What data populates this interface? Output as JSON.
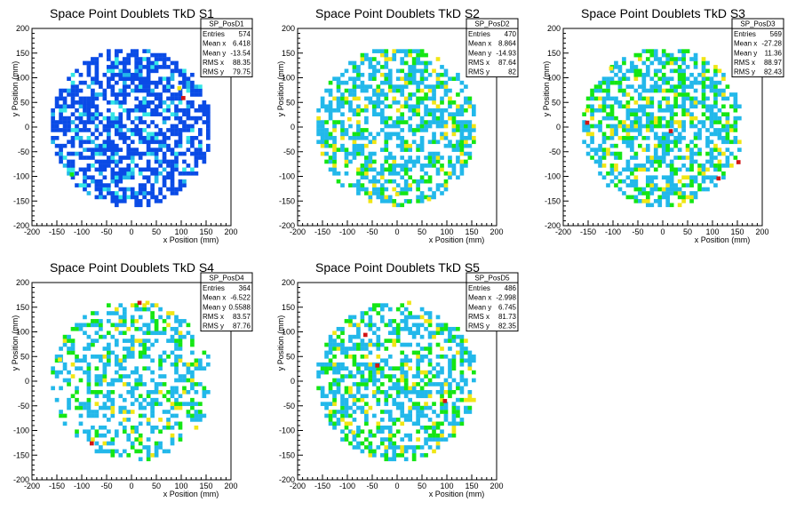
{
  "chart_data": [
    {
      "type": "heatmap",
      "title": "Space Point Doublets TkD S1",
      "xlabel": "x Position (mm)",
      "ylabel": "y Position (mm)",
      "xlim": [
        -200,
        200
      ],
      "ylim": [
        -200,
        200
      ],
      "xticks": [
        "-200",
        "-150",
        "-100",
        "-50",
        "0",
        "50",
        "100",
        "150",
        "200"
      ],
      "yticks": [
        "-200",
        "-150",
        "-100",
        "-50",
        "0",
        "50",
        "100",
        "150",
        "200"
      ],
      "stats": {
        "name": "SP_PosD1",
        "rows": [
          [
            "Entries",
            "574"
          ],
          [
            "Mean x",
            "6.418"
          ],
          [
            "Mean y",
            "-13.54"
          ],
          [
            "RMS x",
            "88.35"
          ],
          [
            "RMS y",
            "79.75"
          ]
        ]
      },
      "fill": 0.62,
      "palette": [
        "#0a4be6",
        "#0a4be6",
        "#0a4be6",
        "#0a4be6",
        "#0a4be6",
        "#0a4be6",
        "#0a4be6",
        "#0a4be6",
        "#22b8ea",
        "#33e6e6"
      ],
      "hot": [
        {
          "color": "#f0e614",
          "x": 92,
          "y": 75
        },
        {
          "color": "#d21414",
          "x": 100,
          "y": 55
        },
        {
          "color": "#14e614",
          "x": -124,
          "y": -100
        }
      ]
    },
    {
      "type": "heatmap",
      "title": "Space Point Doublets TkD S2",
      "xlabel": "x Position (mm)",
      "ylabel": "y Position (mm)",
      "xlim": [
        -200,
        200
      ],
      "ylim": [
        -200,
        200
      ],
      "xticks": [
        "-200",
        "-150",
        "-100",
        "-50",
        "0",
        "50",
        "100",
        "150",
        "200"
      ],
      "yticks": [
        "-200",
        "-150",
        "-100",
        "-50",
        "0",
        "50",
        "100",
        "150",
        "200"
      ],
      "stats": {
        "name": "SP_PosD2",
        "rows": [
          [
            "Entries",
            "470"
          ],
          [
            "Mean x",
            "8.864"
          ],
          [
            "Mean y",
            "-14.93"
          ],
          [
            "RMS x",
            "87.64"
          ],
          [
            "RMS y",
            "82"
          ]
        ]
      },
      "fill": 0.5,
      "palette": [
        "#22b8ea",
        "#22b8ea",
        "#22b8ea",
        "#22b8ea",
        "#22b8ea",
        "#22b8ea",
        "#22b8ea",
        "#14e614",
        "#14e614",
        "#f0e614"
      ],
      "hot": [
        {
          "color": "#f0e614",
          "x": -4,
          "y": -140
        },
        {
          "color": "#f0e614",
          "x": 60,
          "y": -150
        },
        {
          "color": "#14e614",
          "x": 20,
          "y": -155
        },
        {
          "color": "#14e614",
          "x": 124,
          "y": -40
        },
        {
          "color": "#f0e614",
          "x": -100,
          "y": 12
        }
      ]
    },
    {
      "type": "heatmap",
      "title": "Space Point Doublets TkD S3",
      "xlabel": "x Position (mm)",
      "ylabel": "y Position (mm)",
      "xlim": [
        -200,
        200
      ],
      "ylim": [
        -200,
        200
      ],
      "xticks": [
        "-200",
        "-150",
        "-100",
        "-50",
        "0",
        "50",
        "100",
        "150",
        "200"
      ],
      "yticks": [
        "-200",
        "-150",
        "-100",
        "-50",
        "0",
        "50",
        "100",
        "150",
        "200"
      ],
      "stats": {
        "name": "SP_PosD3",
        "rows": [
          [
            "Entries",
            "569"
          ],
          [
            "Mean x",
            "-27.28"
          ],
          [
            "Mean y",
            "11.36"
          ],
          [
            "RMS x",
            "88.97"
          ],
          [
            "RMS y",
            "82.43"
          ]
        ]
      },
      "fill": 0.55,
      "palette": [
        "#22b8ea",
        "#22b8ea",
        "#22b8ea",
        "#22b8ea",
        "#22b8ea",
        "#22b8ea",
        "#14e614",
        "#14e614",
        "#14e614",
        "#f0e614"
      ],
      "hot": [
        {
          "color": "#d21414",
          "x": -156,
          "y": 5
        },
        {
          "color": "#d21414",
          "x": 12,
          "y": -12
        },
        {
          "color": "#d21414",
          "x": 148,
          "y": -75
        },
        {
          "color": "#d21414",
          "x": 108,
          "y": -108
        },
        {
          "color": "#f0e614",
          "x": -156,
          "y": 30
        },
        {
          "color": "#f0e614",
          "x": -108,
          "y": 115
        }
      ]
    },
    {
      "type": "heatmap",
      "title": "Space Point Doublets TkD S4",
      "xlabel": "x Position (mm)",
      "ylabel": "y Position (mm)",
      "xlim": [
        -200,
        200
      ],
      "ylim": [
        -200,
        200
      ],
      "xticks": [
        "-200",
        "-150",
        "-100",
        "-50",
        "0",
        "50",
        "100",
        "150",
        "200"
      ],
      "yticks": [
        "-200",
        "-150",
        "-100",
        "-50",
        "0",
        "50",
        "100",
        "150",
        "200"
      ],
      "stats": {
        "name": "SP_PosD4",
        "rows": [
          [
            "Entries",
            "364"
          ],
          [
            "Mean x",
            "-6.522"
          ],
          [
            "Mean y",
            "0.5588"
          ],
          [
            "RMS x",
            "83.57"
          ],
          [
            "RMS y",
            "87.76"
          ]
        ]
      },
      "fill": 0.38,
      "palette": [
        "#22b8ea",
        "#22b8ea",
        "#22b8ea",
        "#22b8ea",
        "#22b8ea",
        "#22b8ea",
        "#22b8ea",
        "#14e614",
        "#14e614",
        "#f0e614"
      ],
      "hot": [
        {
          "color": "#d21414",
          "x": 12,
          "y": 155
        },
        {
          "color": "#d21414",
          "x": -84,
          "y": -130
        },
        {
          "color": "#f0e614",
          "x": -148,
          "y": 40
        },
        {
          "color": "#f0e614",
          "x": 28,
          "y": 155
        }
      ]
    },
    {
      "type": "heatmap",
      "title": "Space Point Doublets TkD S5",
      "xlabel": "x Position (mm)",
      "ylabel": "y Position (mm)",
      "xlim": [
        -200,
        200
      ],
      "ylim": [
        -200,
        200
      ],
      "xticks": [
        "-200",
        "-150",
        "-100",
        "-50",
        "0",
        "50",
        "100",
        "150",
        "200"
      ],
      "yticks": [
        "-200",
        "-150",
        "-100",
        "-50",
        "0",
        "50",
        "100",
        "150",
        "200"
      ],
      "stats": {
        "name": "SP_PosD5",
        "rows": [
          [
            "Entries",
            "486"
          ],
          [
            "Mean x",
            "-2.998"
          ],
          [
            "Mean y",
            "6.745"
          ],
          [
            "RMS x",
            "81.73"
          ],
          [
            "RMS y",
            "82.35"
          ]
        ]
      },
      "fill": 0.5,
      "palette": [
        "#22b8ea",
        "#22b8ea",
        "#22b8ea",
        "#22b8ea",
        "#22b8ea",
        "#22b8ea",
        "#14e614",
        "#14e614",
        "#14e614",
        "#f0e614"
      ],
      "hot": [
        {
          "color": "#d21414",
          "x": -68,
          "y": 90
        },
        {
          "color": "#d21414",
          "x": -44,
          "y": 28
        },
        {
          "color": "#d21414",
          "x": 92,
          "y": -44
        },
        {
          "color": "#f0e614",
          "x": 20,
          "y": 155
        },
        {
          "color": "#f0e614",
          "x": -92,
          "y": -108
        }
      ]
    }
  ]
}
